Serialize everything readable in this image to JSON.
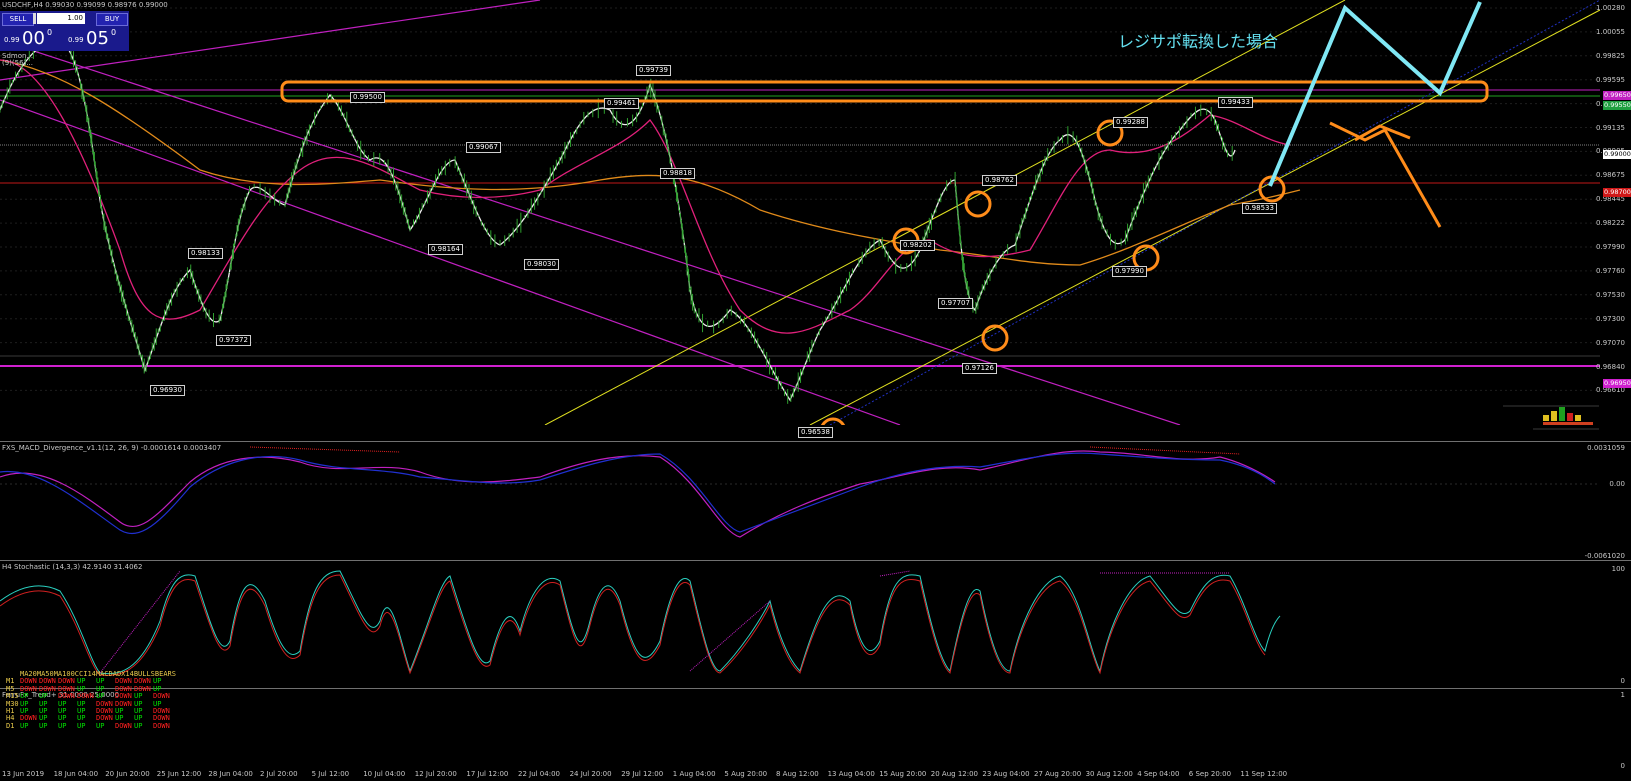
{
  "header": {
    "symbol_line": "USDCHF,H4  0.99030 0.99099 0.98976 0.99000",
    "indicator_line1": "Sdmon...",
    "indicator_line2": "(9)(56)..."
  },
  "trade_panel": {
    "sell_label": "SELL",
    "buy_label": "BUY",
    "lot_value": "1.00",
    "bid_small": "0.99",
    "bid_big": "00",
    "bid_sup": "0",
    "ask_small": "0.99",
    "ask_big": "05",
    "ask_sup": "0"
  },
  "annotation": "レジサポ転換した場合",
  "price_axis": [
    "1.00280",
    "1.00055",
    "0.99825",
    "0.99595",
    "0.99365",
    "0.99135",
    "0.98905",
    "0.98675",
    "0.98445",
    "0.98222",
    "0.97990",
    "0.97760",
    "0.97530",
    "0.97300",
    "0.97070",
    "0.96840",
    "0.96610"
  ],
  "axis_tags": {
    "magenta": "0.99650",
    "green": "0.99550",
    "white": "0.99000",
    "red": "0.98700",
    "magenta_low": "0.96950"
  },
  "price_labels": [
    "0.99500",
    "0.99739",
    "0.99461",
    "0.99067",
    "0.98818",
    "0.98133",
    "0.98164",
    "0.98030",
    "0.97372",
    "0.96930",
    "0.98762",
    "0.98202",
    "0.97707",
    "0.97126",
    "0.96538",
    "0.99288",
    "0.99433",
    "0.98533",
    "0.97990"
  ],
  "macd": {
    "title": "FXS_MACD_Divergence_v1.1(12, 26, 9) -0.0001614 0.0003407",
    "axis": [
      "0.0031059",
      "0.00",
      "-0.0061020"
    ]
  },
  "stoch": {
    "title": "H4 Stochastic (14,3,3) 42.9140 31.4062",
    "axis": [
      "100",
      "0"
    ]
  },
  "trend": {
    "title": "FerruFx_Trend+ 31.0000 25.0000",
    "axis": [
      "1",
      "0"
    ],
    "headers": [
      "MA20",
      "MA50",
      "MA100",
      "CCI14",
      "MACD",
      "ADX14",
      "BULLS",
      "BEARS"
    ],
    "rows": [
      {
        "tf": "M1",
        "cells": [
          "DOWN",
          "DOWN",
          "DOWN",
          "UP",
          "UP",
          "DOWN",
          "DOWN",
          "UP"
        ]
      },
      {
        "tf": "M5",
        "cells": [
          "DOWN",
          "DOWN",
          "DOWN",
          "UP",
          "UP",
          "DOWN",
          "DOWN",
          "UP"
        ]
      },
      {
        "tf": "M15",
        "cells": [
          "UP",
          "UP",
          "DOWN",
          "DOWN",
          "UP",
          "DOWN",
          "UP",
          "DOWN"
        ]
      },
      {
        "tf": "M30",
        "cells": [
          "UP",
          "UP",
          "UP",
          "UP",
          "DOWN",
          "DOWN",
          "UP",
          "UP"
        ]
      },
      {
        "tf": "H1",
        "cells": [
          "UP",
          "UP",
          "UP",
          "UP",
          "DOWN",
          "UP",
          "UP",
          "DOWN"
        ]
      },
      {
        "tf": "H4",
        "cells": [
          "DOWN",
          "UP",
          "UP",
          "UP",
          "DOWN",
          "UP",
          "UP",
          "DOWN"
        ]
      },
      {
        "tf": "D1",
        "cells": [
          "UP",
          "UP",
          "UP",
          "UP",
          "UP",
          "DOWN",
          "UP",
          "DOWN"
        ]
      }
    ]
  },
  "dates": [
    "13 Jun 2019",
    "18 Jun 04:00",
    "20 Jun 20:00",
    "25 Jun 12:00",
    "28 Jun 04:00",
    "2 Jul 20:00",
    "5 Jul 12:00",
    "10 Jul 04:00",
    "12 Jul 20:00",
    "17 Jul 12:00",
    "22 Jul 04:00",
    "24 Jul 20:00",
    "29 Jul 12:00",
    "1 Aug 04:00",
    "5 Aug 20:00",
    "8 Aug 12:00",
    "13 Aug 04:00",
    "15 Aug 20:00",
    "20 Aug 12:00",
    "23 Aug 04:00",
    "27 Aug 20:00",
    "30 Aug 12:00",
    "4 Sep 04:00",
    "6 Sep 20:00",
    "11 Sep 12:00"
  ],
  "colors": {
    "up_text": "#00e000",
    "down_text": "#ff2020",
    "annotation": "#64e0f0",
    "orange": "#ff8c1a"
  }
}
